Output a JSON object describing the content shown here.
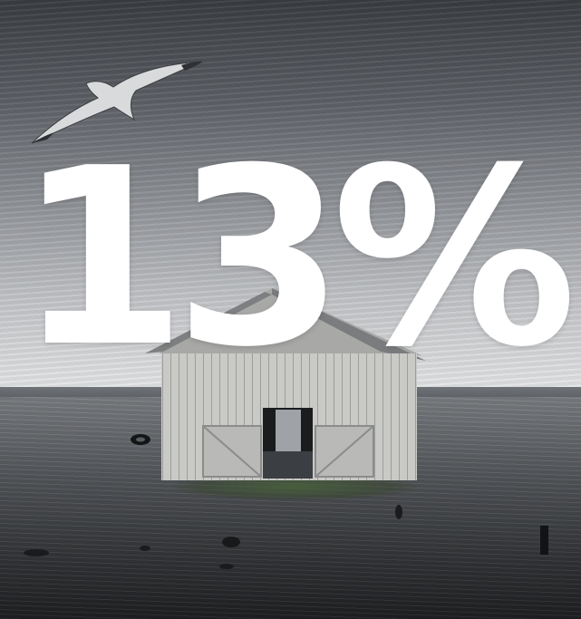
{
  "headline": {
    "percentage_text": "13%"
  },
  "scene": {
    "elements": [
      "sky",
      "seagull",
      "barn",
      "tidal-flat-water",
      "tire"
    ],
    "palette": {
      "sky_dark": "#3a3d41",
      "sky_light": "#e9eaeb",
      "water_dark": "#1f2022",
      "barn_wood": "#c9c9c6",
      "text": "#ffffff"
    }
  }
}
